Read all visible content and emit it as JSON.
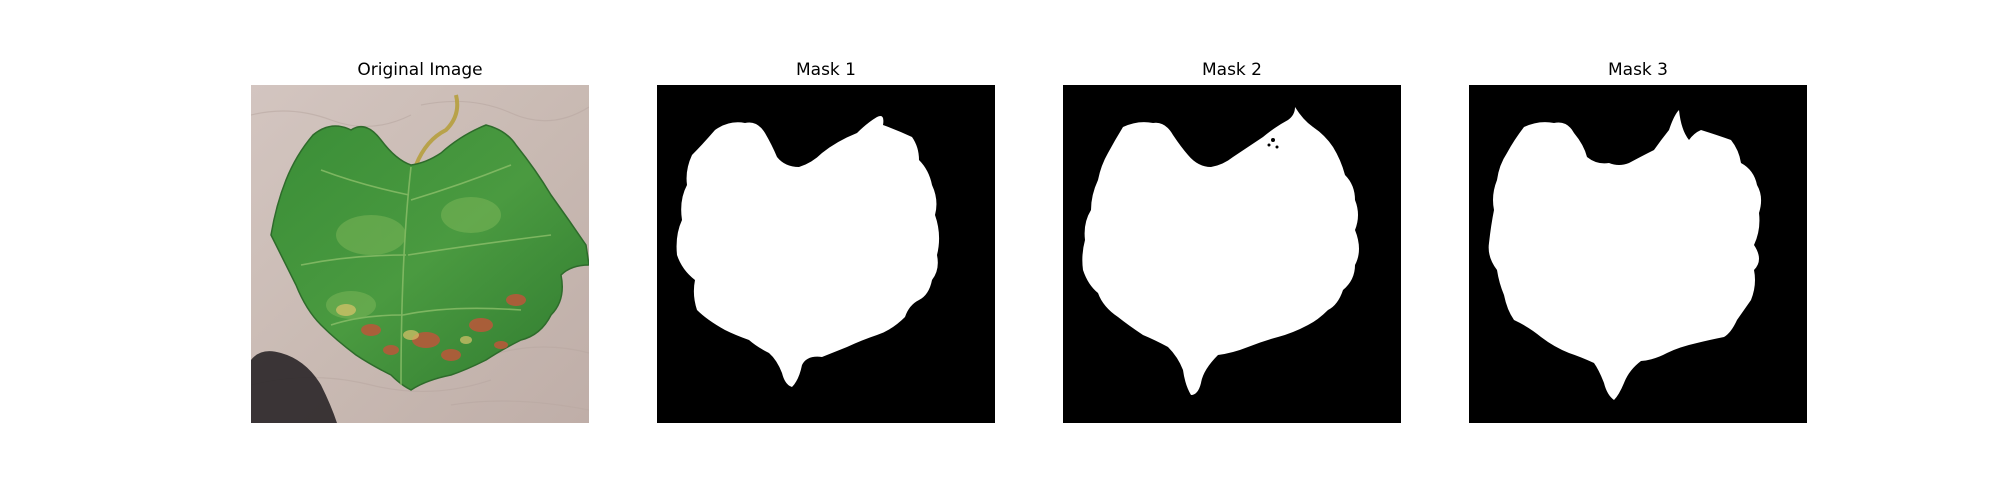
{
  "figure": {
    "panels": [
      {
        "title": "Original Image",
        "kind": "photo",
        "subject": "leaf-photo"
      },
      {
        "title": "Mask 1",
        "kind": "mask",
        "variant": 1
      },
      {
        "title": "Mask 2",
        "kind": "mask",
        "variant": 2
      },
      {
        "title": "Mask 3",
        "kind": "mask",
        "variant": 3
      }
    ]
  },
  "colors": {
    "background": "#ffffff",
    "mask_foreground": "#ffffff",
    "mask_background": "#000000",
    "leaf_main": "#3f8f3a",
    "leaf_dark": "#2f6f2c",
    "leaf_lesion": "#b55a3a",
    "ground": "#cdbdb7"
  }
}
